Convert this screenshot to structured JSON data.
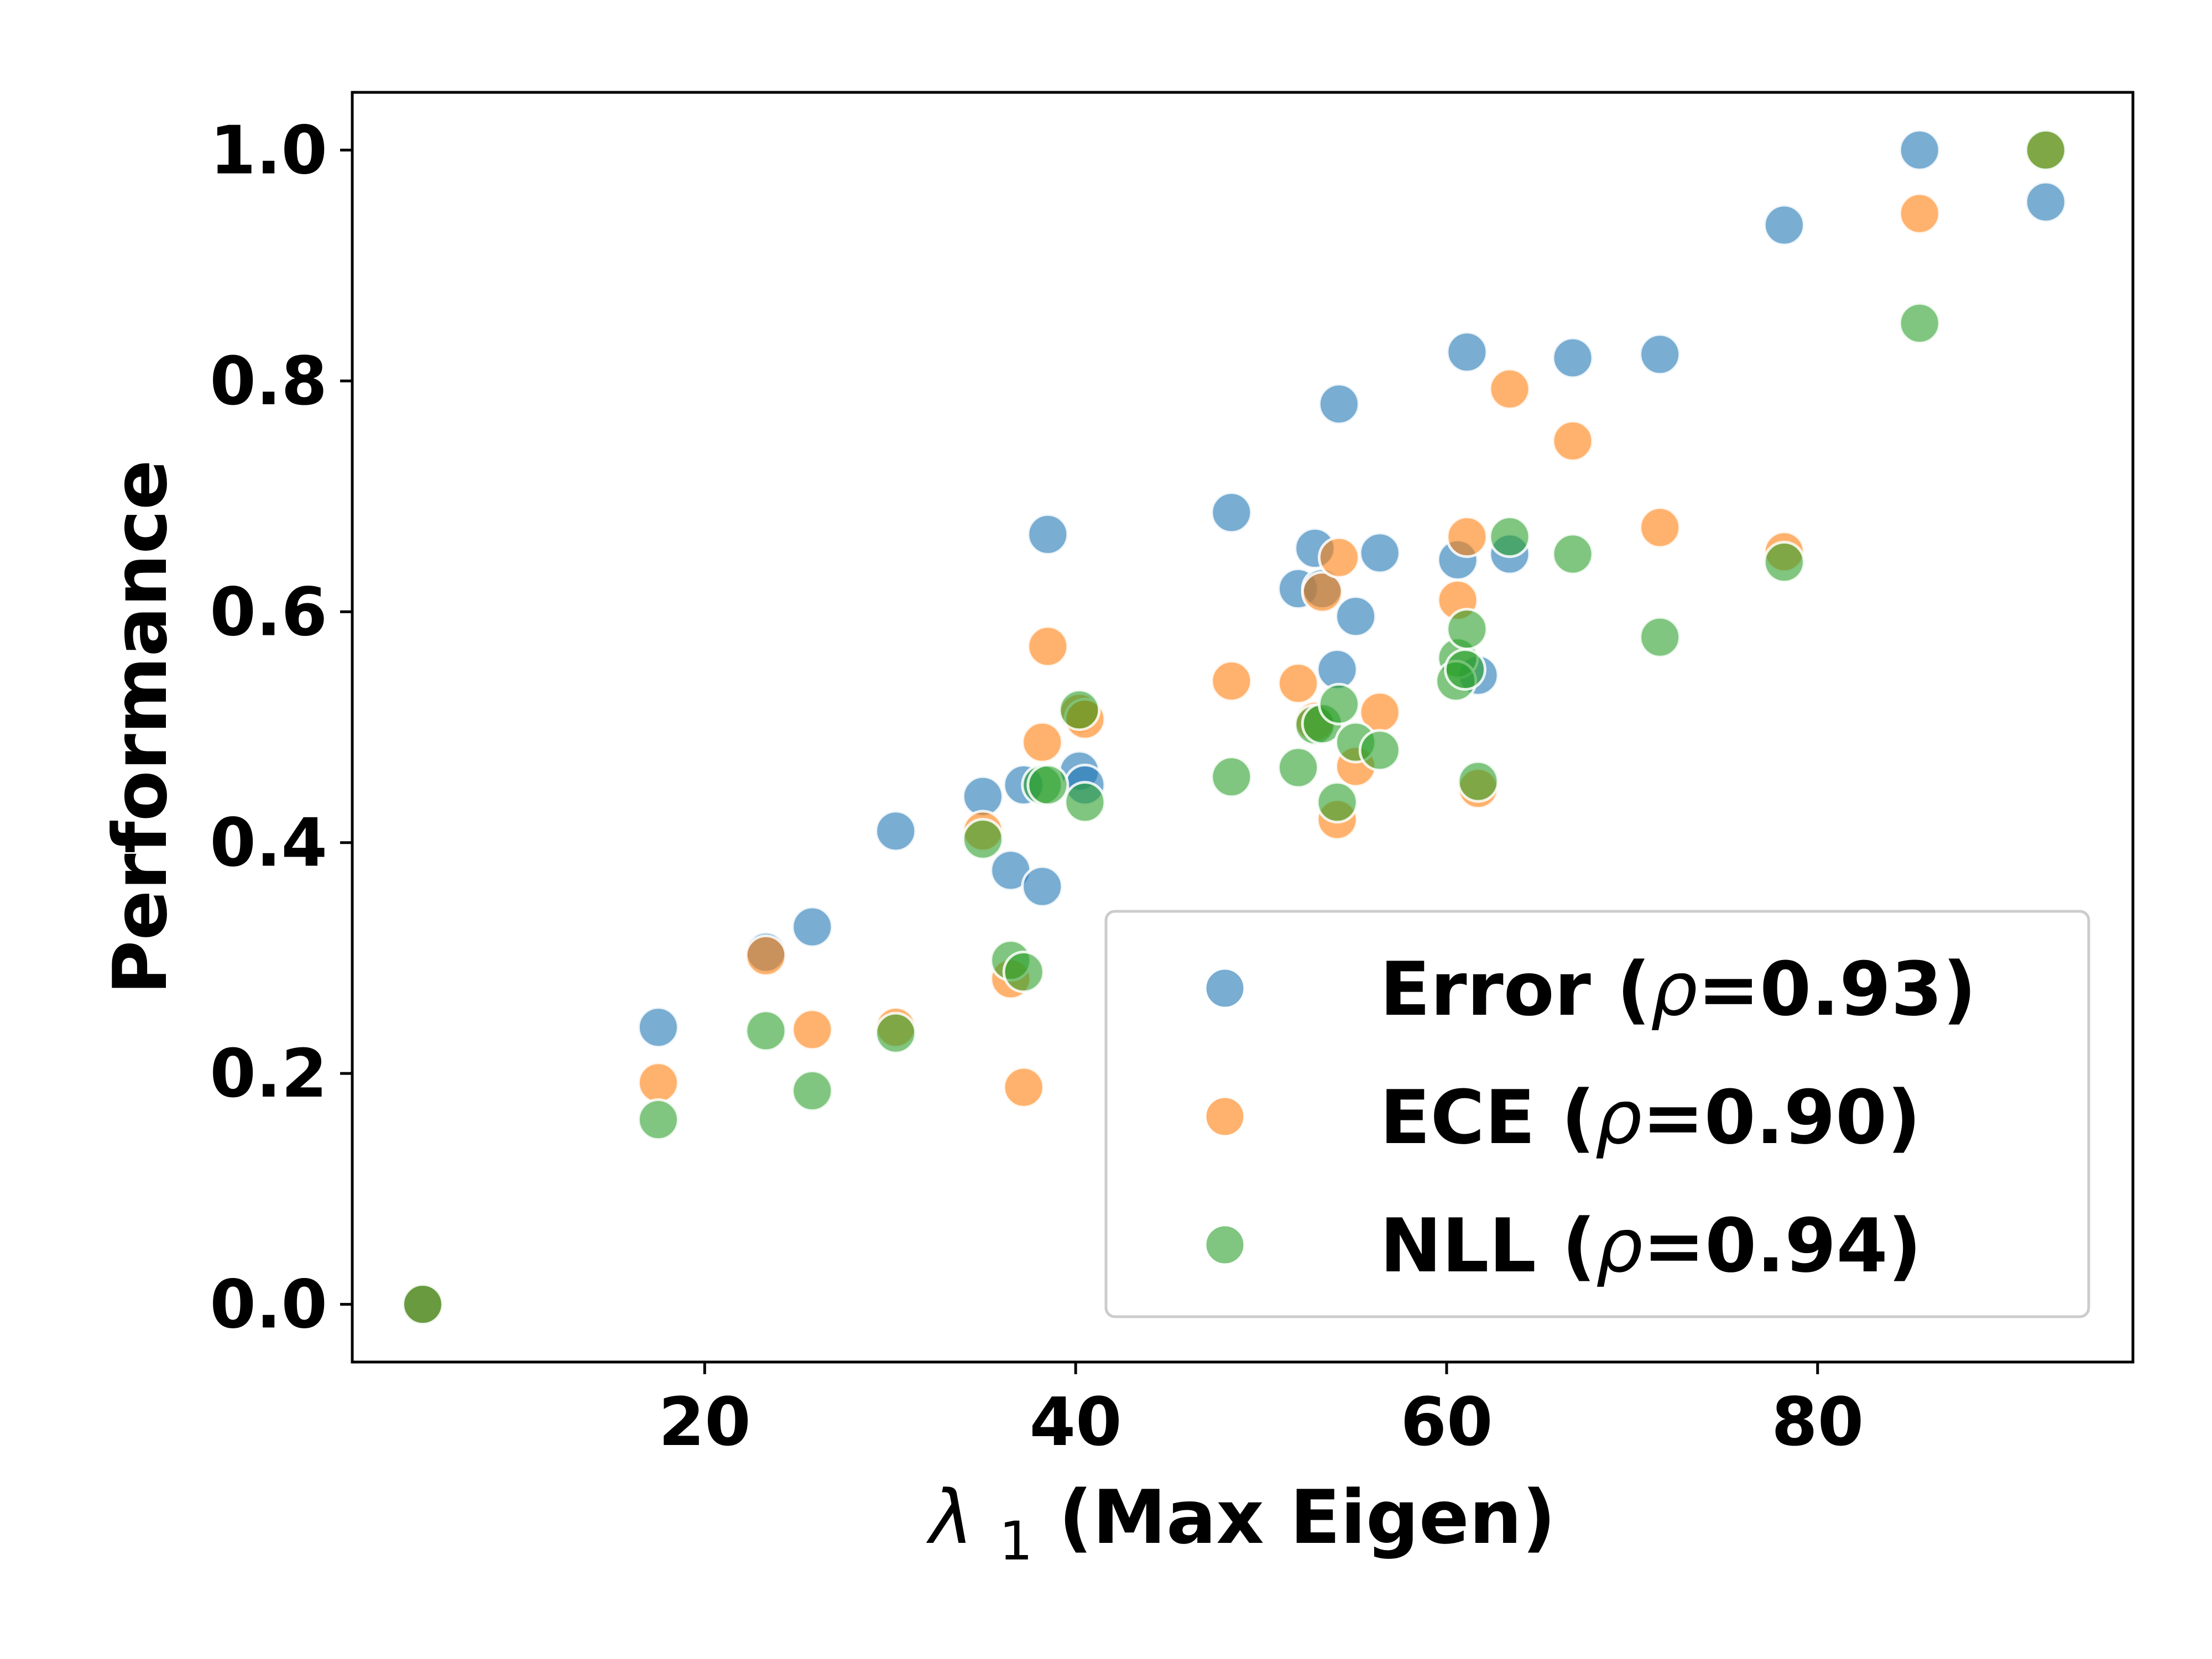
{
  "chart_data": {
    "type": "scatter",
    "xlabel_symbol": "λ",
    "xlabel_subscript": "1",
    "xlabel_text": " (Max Eigen)",
    "ylabel": "Performance",
    "xlim": [
      1,
      97
    ],
    "ylim": [
      -0.05,
      1.05
    ],
    "xticks": [
      20,
      40,
      60,
      80
    ],
    "yticks": [
      0.0,
      0.2,
      0.4,
      0.6,
      0.8,
      1.0
    ],
    "xtick_labels": [
      "20",
      "40",
      "60",
      "80"
    ],
    "ytick_labels": [
      "0.0",
      "0.2",
      "0.4",
      "0.6",
      "0.8",
      "1.0"
    ],
    "grid": false,
    "legend_position": "lower-right",
    "series": [
      {
        "name": "Error (ρ=0.93)",
        "legend_prefix": "Error (",
        "legend_rho": "ρ",
        "legend_suffix": "=0.93)",
        "color": "#1f77b4",
        "points": [
          [
            4.8,
            0.0
          ],
          [
            17.5,
            0.24
          ],
          [
            23.3,
            0.305
          ],
          [
            25.8,
            0.327
          ],
          [
            30.3,
            0.41
          ],
          [
            35.0,
            0.44
          ],
          [
            36.5,
            0.376
          ],
          [
            37.2,
            0.45
          ],
          [
            38.2,
            0.362
          ],
          [
            38.5,
            0.667
          ],
          [
            40.2,
            0.462
          ],
          [
            40.5,
            0.45
          ],
          [
            48.4,
            0.686
          ],
          [
            52.0,
            0.62
          ],
          [
            52.9,
            0.655
          ],
          [
            53.3,
            0.62
          ],
          [
            54.1,
            0.55
          ],
          [
            54.2,
            0.78
          ],
          [
            55.1,
            0.596
          ],
          [
            56.4,
            0.651
          ],
          [
            60.6,
            0.645
          ],
          [
            61.1,
            0.825
          ],
          [
            61.7,
            0.545
          ],
          [
            63.4,
            0.65
          ],
          [
            66.8,
            0.82
          ],
          [
            71.5,
            0.823
          ],
          [
            78.2,
            0.935
          ],
          [
            85.5,
            1.0
          ],
          [
            92.3,
            0.955
          ]
        ]
      },
      {
        "name": "ECE (ρ=0.90)",
        "legend_prefix": "ECE (",
        "legend_rho": "ρ",
        "legend_suffix": "=0.90)",
        "color": "#ff7f0e",
        "points": [
          [
            4.8,
            0.0
          ],
          [
            17.5,
            0.192
          ],
          [
            23.3,
            0.302
          ],
          [
            25.8,
            0.238
          ],
          [
            30.3,
            0.24
          ],
          [
            35.0,
            0.41
          ],
          [
            36.5,
            0.282
          ],
          [
            37.2,
            0.188
          ],
          [
            38.2,
            0.487
          ],
          [
            38.5,
            0.57
          ],
          [
            40.2,
            0.512
          ],
          [
            40.5,
            0.507
          ],
          [
            48.4,
            0.54
          ],
          [
            52.0,
            0.538
          ],
          [
            52.9,
            0.505
          ],
          [
            53.3,
            0.617
          ],
          [
            54.1,
            0.42
          ],
          [
            54.2,
            0.647
          ],
          [
            55.1,
            0.466
          ],
          [
            56.4,
            0.513
          ],
          [
            60.6,
            0.61
          ],
          [
            61.1,
            0.665
          ],
          [
            61.7,
            0.447
          ],
          [
            63.4,
            0.793
          ],
          [
            66.8,
            0.748
          ],
          [
            71.5,
            0.673
          ],
          [
            78.2,
            0.652
          ],
          [
            85.5,
            0.945
          ],
          [
            92.3,
            1.0
          ]
        ]
      },
      {
        "name": "NLL (ρ=0.94)",
        "legend_prefix": "NLL (",
        "legend_rho": "ρ",
        "legend_suffix": "=0.94)",
        "color": "#2ca02c",
        "points": [
          [
            4.8,
            0.0
          ],
          [
            17.5,
            0.16
          ],
          [
            23.3,
            0.237
          ],
          [
            25.8,
            0.185
          ],
          [
            30.3,
            0.235
          ],
          [
            35.0,
            0.403
          ],
          [
            36.5,
            0.298
          ],
          [
            37.2,
            0.288
          ],
          [
            38.2,
            0.45
          ],
          [
            38.5,
            0.45
          ],
          [
            40.2,
            0.515
          ],
          [
            40.5,
            0.435
          ],
          [
            48.4,
            0.457
          ],
          [
            52.0,
            0.465
          ],
          [
            52.9,
            0.502
          ],
          [
            53.3,
            0.503
          ],
          [
            54.1,
            0.435
          ],
          [
            54.2,
            0.52
          ],
          [
            55.1,
            0.487
          ],
          [
            56.4,
            0.48
          ],
          [
            60.6,
            0.56
          ],
          [
            61.1,
            0.585
          ],
          [
            61.7,
            0.453
          ],
          [
            63.4,
            0.665
          ],
          [
            66.8,
            0.65
          ],
          [
            71.5,
            0.578
          ],
          [
            78.2,
            0.643
          ],
          [
            85.5,
            0.85
          ],
          [
            92.3,
            1.0
          ],
          [
            60.5,
            0.54
          ],
          [
            61.0,
            0.55
          ]
        ]
      }
    ]
  }
}
